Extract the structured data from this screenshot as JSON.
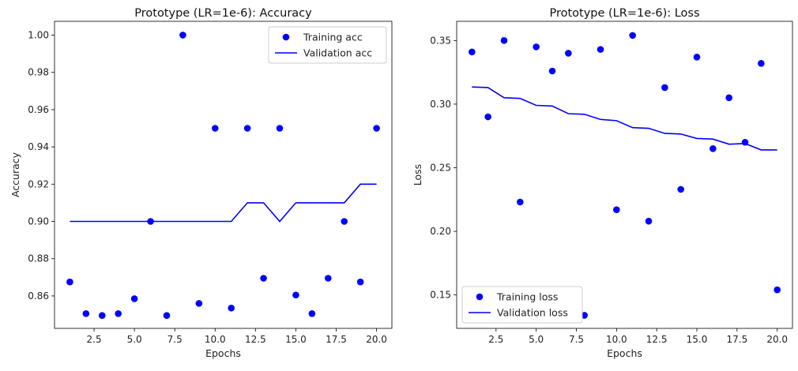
{
  "colors": {
    "series": "#0000ff"
  },
  "chart_data": [
    {
      "type": "line",
      "title": "Prototype (LR=1e-6): Accuracy",
      "xlabel": "Epochs",
      "ylabel": "Accuracy",
      "xlim": [
        0.05,
        20.95
      ],
      "ylim": [
        0.8426,
        1.0074
      ],
      "xticks": [
        2.5,
        5.0,
        7.5,
        10.0,
        12.5,
        15.0,
        17.5,
        20.0
      ],
      "xtick_labels": [
        "2.5",
        "5.0",
        "7.5",
        "10.0",
        "12.5",
        "15.0",
        "17.5",
        "20.0"
      ],
      "yticks": [
        0.86,
        0.88,
        0.9,
        0.92,
        0.94,
        0.96,
        0.98,
        1.0
      ],
      "ytick_labels": [
        "0.86",
        "0.88",
        "0.90",
        "0.92",
        "0.94",
        "0.96",
        "0.98",
        "1.00"
      ],
      "legend_position": "top-right",
      "series": [
        {
          "name": "Training acc",
          "style": "markers",
          "x": [
            1,
            2,
            3,
            4,
            5,
            6,
            7,
            8,
            9,
            10,
            11,
            12,
            13,
            14,
            15,
            16,
            17,
            18,
            19,
            20
          ],
          "values": [
            0.8675,
            0.8505,
            0.8495,
            0.8505,
            0.8585,
            0.9,
            0.8495,
            1.0,
            0.856,
            0.95,
            0.8535,
            0.95,
            0.8695,
            0.95,
            0.8605,
            0.8505,
            0.8695,
            0.9,
            0.8675,
            0.95
          ]
        },
        {
          "name": "Validation acc",
          "style": "line",
          "x": [
            1,
            2,
            3,
            4,
            5,
            6,
            7,
            8,
            9,
            10,
            11,
            12,
            13,
            14,
            15,
            16,
            17,
            18,
            19,
            20
          ],
          "values": [
            0.9,
            0.9,
            0.9,
            0.9,
            0.9,
            0.9,
            0.9,
            0.9,
            0.9,
            0.9,
            0.9,
            0.91,
            0.91,
            0.9,
            0.91,
            0.91,
            0.91,
            0.91,
            0.92,
            0.92
          ]
        }
      ]
    },
    {
      "type": "line",
      "title": "Prototype (LR=1e-6): Loss",
      "xlabel": "Epochs",
      "ylabel": "Loss",
      "xlim": [
        0.05,
        20.95
      ],
      "ylim": [
        0.1237,
        0.3651
      ],
      "xticks": [
        2.5,
        5.0,
        7.5,
        10.0,
        12.5,
        15.0,
        17.5,
        20.0
      ],
      "xtick_labels": [
        "2.5",
        "5.0",
        "7.5",
        "10.0",
        "12.5",
        "15.0",
        "17.5",
        "20.0"
      ],
      "yticks": [
        0.15,
        0.2,
        0.25,
        0.3,
        0.35
      ],
      "ytick_labels": [
        "0.15",
        "0.20",
        "0.25",
        "0.30",
        "0.35"
      ],
      "legend_position": "bottom-left",
      "series": [
        {
          "name": "Training loss",
          "style": "markers",
          "x": [
            1,
            2,
            3,
            4,
            5,
            6,
            7,
            8,
            9,
            10,
            11,
            12,
            13,
            14,
            15,
            16,
            17,
            18,
            19,
            20
          ],
          "values": [
            0.341,
            0.29,
            0.35,
            0.223,
            0.345,
            0.326,
            0.34,
            0.134,
            0.343,
            0.217,
            0.354,
            0.208,
            0.313,
            0.233,
            0.337,
            0.265,
            0.305,
            0.27,
            0.332,
            0.154
          ]
        },
        {
          "name": "Validation loss",
          "style": "line",
          "x": [
            1,
            2,
            3,
            4,
            5,
            6,
            7,
            8,
            9,
            10,
            11,
            12,
            13,
            14,
            15,
            16,
            17,
            18,
            19,
            20
          ],
          "values": [
            0.3135,
            0.313,
            0.305,
            0.3045,
            0.299,
            0.2985,
            0.2925,
            0.292,
            0.288,
            0.287,
            0.2815,
            0.281,
            0.277,
            0.2765,
            0.273,
            0.2725,
            0.2685,
            0.269,
            0.264,
            0.264
          ]
        }
      ]
    }
  ]
}
